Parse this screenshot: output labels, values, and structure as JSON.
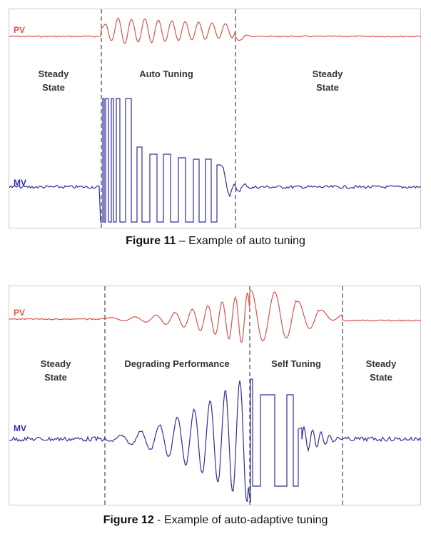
{
  "figure11": {
    "caption_bold": "Figure 11",
    "caption_rest": " – Example of auto tuning",
    "pv_label": "PV",
    "mv_label": "MV",
    "regions": [
      {
        "line1": "Steady",
        "line2": "State"
      },
      {
        "line1": "Auto Tuning",
        "line2": ""
      },
      {
        "line1": "Steady",
        "line2": "State"
      }
    ]
  },
  "figure12": {
    "caption_bold": "Figure 12",
    "caption_rest": " - Example of auto-adaptive tuning",
    "pv_label": "PV",
    "mv_label": "MV",
    "regions": [
      {
        "line1": "Steady",
        "line2": "State"
      },
      {
        "line1": "Degrading Performance",
        "line2": ""
      },
      {
        "line1": "Self Tuning",
        "line2": ""
      },
      {
        "line1": "Steady",
        "line2": "State"
      }
    ]
  },
  "colors": {
    "pv": "#d9534f",
    "mv": "#2f2f9e",
    "divider": "#555555"
  }
}
